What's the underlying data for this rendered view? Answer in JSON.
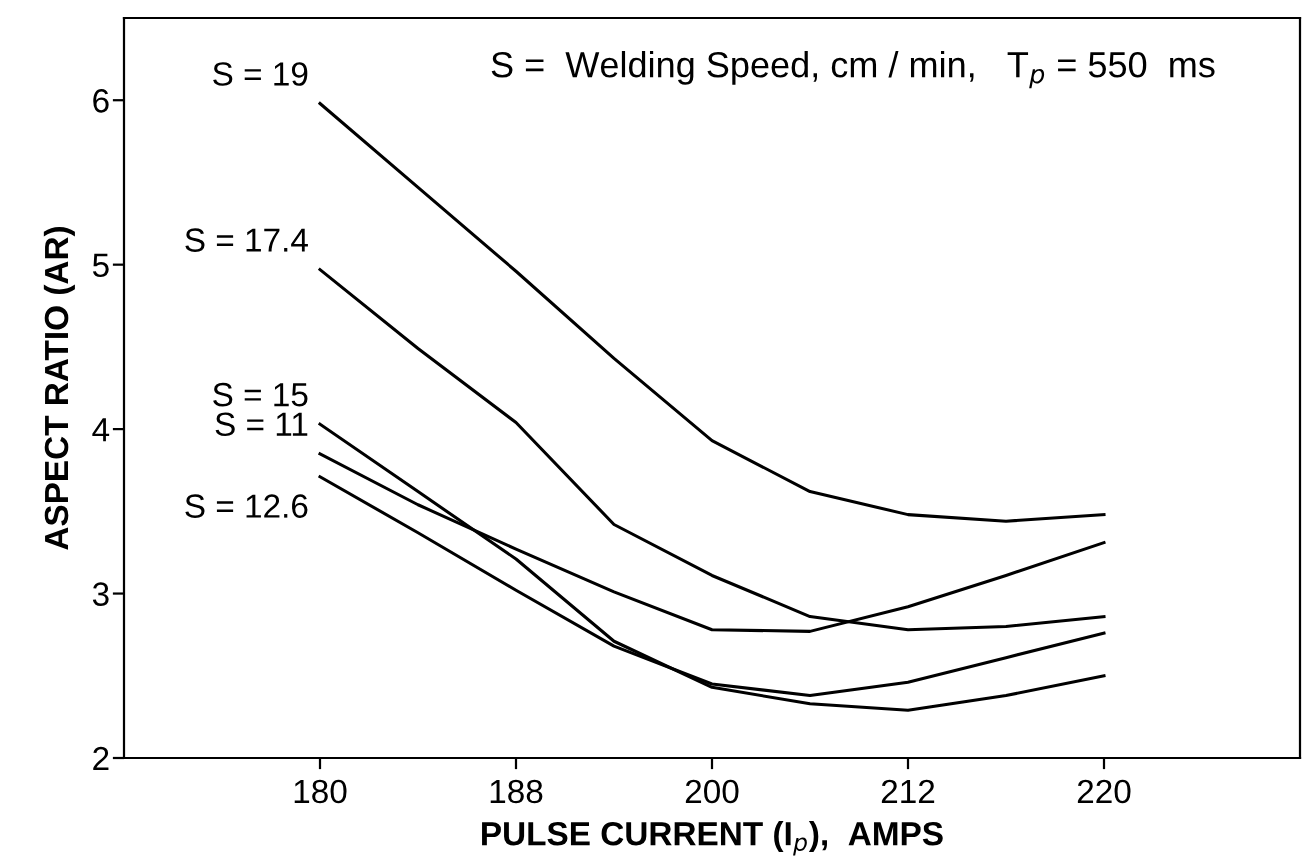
{
  "chart_data": {
    "type": "line",
    "title": "S =  Welding Speed, cm / min,   T$_{p}$ = 550  ms",
    "xlabel": "PULSE CURRENT (I$_{p}$),  AMPS",
    "ylabel": "ASPECT RATIO (AR)",
    "categories": [
      "180",
      null,
      "188",
      null,
      "200",
      null,
      "212",
      null,
      "220"
    ],
    "series": [
      {
        "name": "S = 19",
        "color": "#000000",
        "values": [
          5.98,
          5.47,
          4.96,
          4.43,
          3.93,
          3.62,
          3.48,
          3.44,
          3.48
        ]
      },
      {
        "name": "S = 17.4",
        "color": "#000000",
        "values": [
          4.97,
          4.49,
          4.04,
          3.42,
          3.11,
          2.86,
          2.78,
          2.8,
          2.86
        ]
      },
      {
        "name": "S = 15",
        "color": "#000000",
        "values": [
          4.03,
          3.62,
          3.21,
          2.71,
          2.43,
          2.33,
          2.29,
          2.38,
          2.5
        ]
      },
      {
        "name": "S = 11",
        "color": "#000000",
        "values": [
          3.85,
          3.54,
          3.27,
          3.01,
          2.78,
          2.77,
          2.92,
          3.11,
          3.31
        ]
      },
      {
        "name": "S = 12.6",
        "color": "#000000",
        "values": [
          3.71,
          3.37,
          3.02,
          2.68,
          2.45,
          2.38,
          2.46,
          2.61,
          2.76
        ]
      }
    ],
    "ylim": [
      2,
      6.5
    ],
    "yticks": [
      2,
      3,
      4,
      5,
      6
    ],
    "grid": false,
    "legend": false,
    "marker": "none",
    "line_style": "solid"
  }
}
